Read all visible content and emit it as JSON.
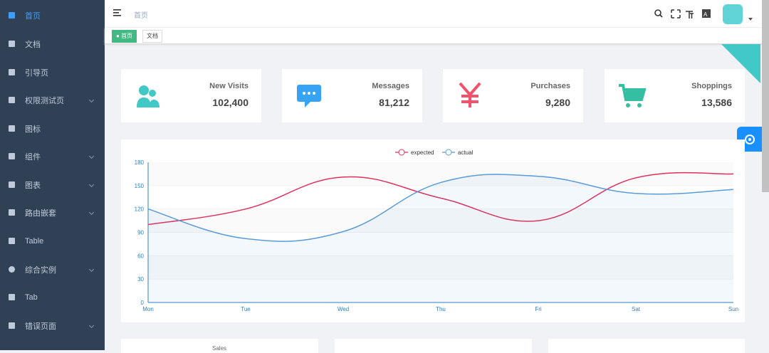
{
  "sidebar": {
    "items": [
      "首页",
      "文档",
      "引导页",
      "权限测试页",
      "图标",
      "组件",
      "图表",
      "路由嵌套",
      "Table",
      "综合实例",
      "Tab",
      "错误页面"
    ]
  },
  "header": {
    "breadcrumb": "首页"
  },
  "tags": [
    "首页",
    "文档"
  ],
  "cards": [
    {
      "label": "New Visits",
      "value": "102,400"
    },
    {
      "label": "Messages",
      "value": "81,212"
    },
    {
      "label": "Purchases",
      "value": "9,280"
    },
    {
      "label": "Shoppings",
      "value": "13,586"
    }
  ],
  "chart_data": {
    "type": "line",
    "categories": [
      "Mon",
      "Tue",
      "Wed",
      "Thu",
      "Fri",
      "Sat",
      "Sun"
    ],
    "series": [
      {
        "name": "expected",
        "color": "#e0315b",
        "values": [
          100,
          120,
          161,
          134,
          105,
          160,
          165
        ]
      },
      {
        "name": "actual",
        "color": "#5a9bd8",
        "values": [
          120,
          82,
          91,
          154,
          162,
          140,
          145
        ]
      }
    ],
    "ylim": [
      0,
      180
    ],
    "yticks": [
      0,
      30,
      60,
      90,
      120,
      150,
      180
    ],
    "grid": true
  },
  "bottom_panels": [
    "Sales"
  ]
}
